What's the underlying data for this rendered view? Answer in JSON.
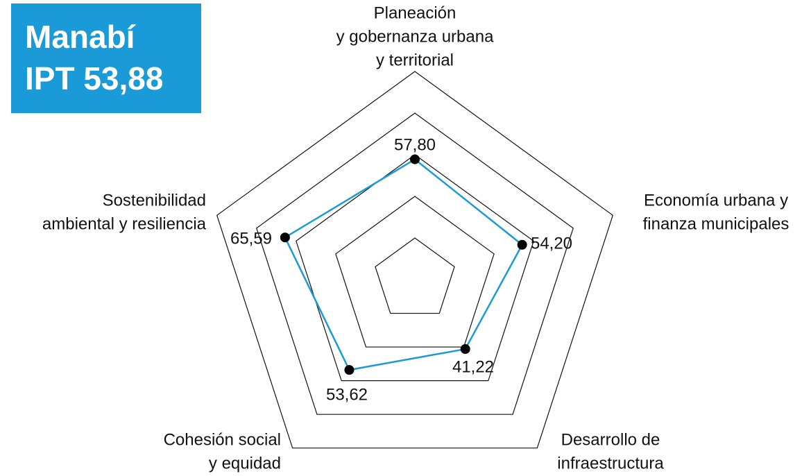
{
  "chart_data": {
    "type": "radar",
    "title": "Manabí",
    "subtitle": "IPT 53,88",
    "categories": [
      [
        "Planeación",
        "y gobernanza urbana",
        "y territorial"
      ],
      [
        "Economía urbana y",
        "finanza municipales"
      ],
      [
        "Desarrollo de",
        "infraestructura"
      ],
      [
        "Cohesión social",
        "y equidad"
      ],
      [
        "Sostenibilidad",
        "ambiental y resiliencia"
      ]
    ],
    "values": [
      57.8,
      54.2,
      41.22,
      53.62,
      65.59
    ],
    "value_labels": [
      "57,80",
      "54,20",
      "41,22",
      "53,62",
      "65,59"
    ],
    "color": "#1a9ad6",
    "rlim": [
      0,
      100
    ],
    "rticks": [
      20,
      40,
      60,
      80,
      100
    ]
  }
}
